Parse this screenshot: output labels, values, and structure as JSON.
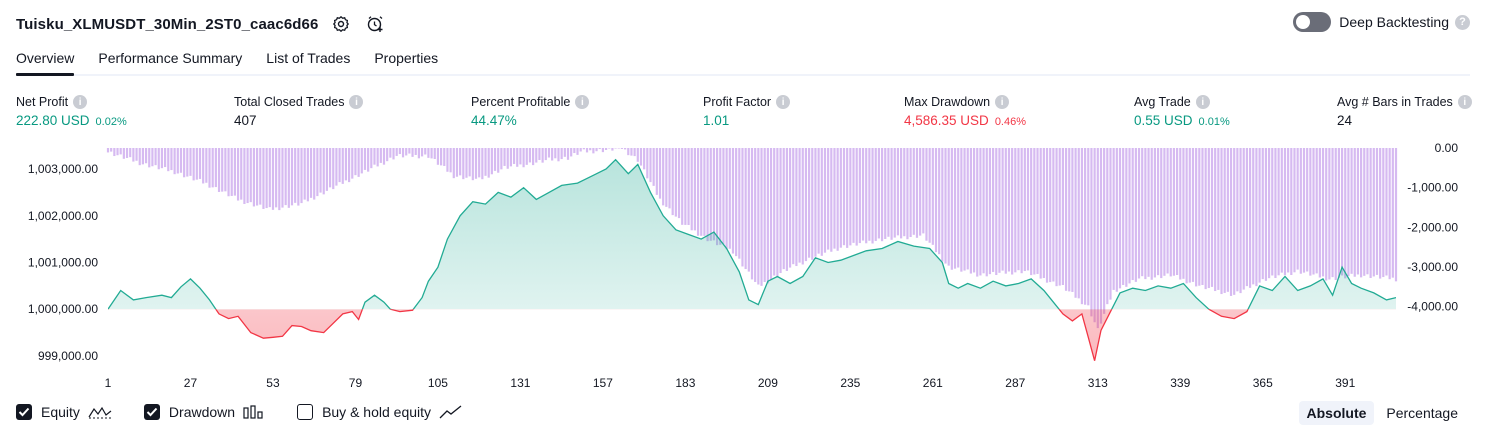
{
  "header": {
    "title": "Tuisku_XLMUSDT_30Min_2ST0_caac6d66",
    "deep_backtesting_label": "Deep Backtesting",
    "deep_backtesting_enabled": false,
    "help_glyph": "?"
  },
  "tabs": [
    {
      "label": "Overview",
      "active": true
    },
    {
      "label": "Performance Summary",
      "active": false
    },
    {
      "label": "List of Trades",
      "active": false
    },
    {
      "label": "Properties",
      "active": false
    }
  ],
  "metrics": {
    "info_glyph": "i",
    "net_profit": {
      "label": "Net Profit",
      "value": "222.80 USD",
      "percent": "0.02%"
    },
    "total_closed_trades": {
      "label": "Total Closed Trades",
      "value": "407"
    },
    "percent_profitable": {
      "label": "Percent Profitable",
      "value": "44.47%"
    },
    "profit_factor": {
      "label": "Profit Factor",
      "value": "1.01"
    },
    "max_drawdown": {
      "label": "Max Drawdown",
      "value": "4,586.35 USD",
      "percent": "0.46%"
    },
    "avg_trade": {
      "label": "Avg Trade",
      "value": "0.55 USD",
      "percent": "0.01%"
    },
    "avg_bars": {
      "label": "Avg # Bars in Trades",
      "value": "24"
    }
  },
  "chart_data": {
    "type": "area",
    "x_ticks": [
      "1",
      "27",
      "53",
      "79",
      "105",
      "131",
      "157",
      "183",
      "209",
      "235",
      "261",
      "287",
      "313",
      "339",
      "365",
      "391"
    ],
    "xlim": [
      1,
      407
    ],
    "left_axis": {
      "ticks": [
        "1,003,000.00",
        "1,002,000.00",
        "1,001,000.00",
        "1,000,000.00",
        "999,000.00"
      ],
      "ylim": [
        998700,
        1003450
      ]
    },
    "right_axis": {
      "ticks": [
        "0.00",
        "-1,000.00",
        "-2,000.00",
        "-3,000.00",
        "-4,000.00"
      ],
      "ylim": [
        -4586,
        0
      ]
    },
    "equity_baseline": 1000000,
    "series": [
      {
        "name": "Equity",
        "points": [
          [
            1,
            1000000
          ],
          [
            5,
            1000400
          ],
          [
            9,
            1000200
          ],
          [
            13,
            1000250
          ],
          [
            18,
            1000300
          ],
          [
            21,
            1000250
          ],
          [
            24,
            1000480
          ],
          [
            27,
            1000650
          ],
          [
            30,
            1000450
          ],
          [
            33,
            1000200
          ],
          [
            36,
            999900
          ],
          [
            39,
            999800
          ],
          [
            42,
            999850
          ],
          [
            46,
            999500
          ],
          [
            50,
            999380
          ],
          [
            53,
            999400
          ],
          [
            56,
            999420
          ],
          [
            59,
            999650
          ],
          [
            62,
            999630
          ],
          [
            65,
            999540
          ],
          [
            69,
            999500
          ],
          [
            72,
            999700
          ],
          [
            75,
            999900
          ],
          [
            78,
            999950
          ],
          [
            80,
            999780
          ],
          [
            82,
            1000150
          ],
          [
            85,
            1000300
          ],
          [
            88,
            1000150
          ],
          [
            90,
            1000000
          ],
          [
            93,
            999950
          ],
          [
            97,
            999980
          ],
          [
            100,
            1000250
          ],
          [
            102,
            1000600
          ],
          [
            105,
            1000900
          ],
          [
            108,
            1001500
          ],
          [
            112,
            1002000
          ],
          [
            116,
            1002300
          ],
          [
            120,
            1002250
          ],
          [
            124,
            1002500
          ],
          [
            128,
            1002400
          ],
          [
            132,
            1002600
          ],
          [
            136,
            1002350
          ],
          [
            140,
            1002500
          ],
          [
            144,
            1002650
          ],
          [
            149,
            1002700
          ],
          [
            152,
            1002800
          ],
          [
            155,
            1002900
          ],
          [
            158,
            1003000
          ],
          [
            161,
            1003200
          ],
          [
            165,
            1002900
          ],
          [
            168,
            1003100
          ],
          [
            172,
            1002500
          ],
          [
            176,
            1002000
          ],
          [
            180,
            1001700
          ],
          [
            184,
            1001600
          ],
          [
            188,
            1001500
          ],
          [
            192,
            1001650
          ],
          [
            196,
            1001300
          ],
          [
            200,
            1000800
          ],
          [
            203,
            1000200
          ],
          [
            206,
            1000100
          ],
          [
            209,
            1000600
          ],
          [
            212,
            1000700
          ],
          [
            216,
            1000550
          ],
          [
            220,
            1000700
          ],
          [
            224,
            1001100
          ],
          [
            228,
            1001000
          ],
          [
            232,
            1001050
          ],
          [
            236,
            1001150
          ],
          [
            240,
            1001250
          ],
          [
            245,
            1001300
          ],
          [
            250,
            1001450
          ],
          [
            255,
            1001350
          ],
          [
            260,
            1001300
          ],
          [
            264,
            1001000
          ],
          [
            266,
            1000550
          ],
          [
            269,
            1000450
          ],
          [
            272,
            1000550
          ],
          [
            276,
            1000450
          ],
          [
            280,
            1000600
          ],
          [
            284,
            1000500
          ],
          [
            288,
            1000550
          ],
          [
            292,
            1000650
          ],
          [
            296,
            1000400
          ],
          [
            299,
            1000150
          ],
          [
            302,
            999900
          ],
          [
            305,
            999750
          ],
          [
            308,
            999900
          ],
          [
            310,
            999400
          ],
          [
            312,
            998900
          ],
          [
            314,
            999550
          ],
          [
            317,
            999950
          ],
          [
            320,
            1000350
          ],
          [
            324,
            1000450
          ],
          [
            328,
            1000400
          ],
          [
            332,
            1000500
          ],
          [
            336,
            1000450
          ],
          [
            340,
            1000550
          ],
          [
            344,
            1000250
          ],
          [
            348,
            1000000
          ],
          [
            352,
            999850
          ],
          [
            356,
            999800
          ],
          [
            360,
            999950
          ],
          [
            364,
            1000500
          ],
          [
            368,
            1000400
          ],
          [
            372,
            1000700
          ],
          [
            376,
            1000400
          ],
          [
            380,
            1000500
          ],
          [
            384,
            1000650
          ],
          [
            387,
            1000300
          ],
          [
            390,
            1000900
          ],
          [
            393,
            1000550
          ],
          [
            396,
            1000450
          ],
          [
            400,
            1000350
          ],
          [
            404,
            1000200
          ],
          [
            407,
            1000250
          ]
        ]
      },
      {
        "name": "Drawdown",
        "points": [
          [
            1,
            -100
          ],
          [
            12,
            -400
          ],
          [
            22,
            -600
          ],
          [
            32,
            -900
          ],
          [
            42,
            -1300
          ],
          [
            52,
            -1550
          ],
          [
            62,
            -1400
          ],
          [
            72,
            -1000
          ],
          [
            82,
            -600
          ],
          [
            92,
            -200
          ],
          [
            102,
            -200
          ],
          [
            110,
            -700
          ],
          [
            118,
            -800
          ],
          [
            126,
            -500
          ],
          [
            134,
            -400
          ],
          [
            140,
            -300
          ],
          [
            146,
            -250
          ],
          [
            150,
            -100
          ],
          [
            158,
            -50
          ],
          [
            163,
            0
          ],
          [
            168,
            -300
          ],
          [
            175,
            -1300
          ],
          [
            182,
            -1900
          ],
          [
            190,
            -2300
          ],
          [
            198,
            -2600
          ],
          [
            206,
            -3500
          ],
          [
            214,
            -3100
          ],
          [
            222,
            -2800
          ],
          [
            232,
            -2500
          ],
          [
            245,
            -2300
          ],
          [
            258,
            -2200
          ],
          [
            266,
            -3000
          ],
          [
            276,
            -3200
          ],
          [
            290,
            -3100
          ],
          [
            302,
            -3500
          ],
          [
            310,
            -4000
          ],
          [
            313,
            -4586
          ],
          [
            318,
            -3600
          ],
          [
            326,
            -3300
          ],
          [
            336,
            -3200
          ],
          [
            346,
            -3500
          ],
          [
            356,
            -3700
          ],
          [
            366,
            -3300
          ],
          [
            376,
            -3100
          ],
          [
            386,
            -3300
          ],
          [
            396,
            -3200
          ],
          [
            407,
            -3300
          ]
        ]
      }
    ],
    "colors": {
      "equity_positive": "#22ab94",
      "equity_negative": "#f23645",
      "drawdown": "#d1b3f0",
      "buy_hold": "#5b9cf6"
    }
  },
  "legend": {
    "equity": {
      "label": "Equity",
      "checked": true
    },
    "drawdown": {
      "label": "Drawdown",
      "checked": true
    },
    "buy_hold": {
      "label": "Buy & hold equity",
      "checked": false
    }
  },
  "mode": {
    "absolute": "Absolute",
    "percentage": "Percentage",
    "selected": "absolute"
  }
}
